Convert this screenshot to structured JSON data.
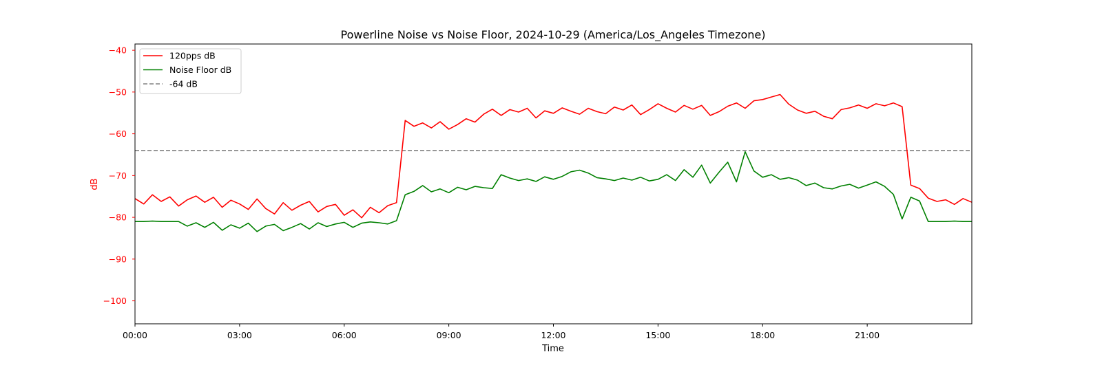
{
  "chart_data": {
    "type": "line",
    "title": "Powerline Noise vs Noise Floor, 2024-10-29 (America/Los_Angeles Timezone)",
    "xlabel": "Time",
    "ylabel": "dB",
    "xlim_hours": [
      0,
      24
    ],
    "ylim": [
      -105.5,
      -38.5
    ],
    "x_ticks": [
      {
        "hour": 0,
        "label": "00:00"
      },
      {
        "hour": 3,
        "label": "03:00"
      },
      {
        "hour": 6,
        "label": "06:00"
      },
      {
        "hour": 9,
        "label": "09:00"
      },
      {
        "hour": 12,
        "label": "12:00"
      },
      {
        "hour": 15,
        "label": "15:00"
      },
      {
        "hour": 18,
        "label": "18:00"
      },
      {
        "hour": 21,
        "label": "21:00"
      }
    ],
    "y_ticks": [
      {
        "value": -40,
        "label": "−40"
      },
      {
        "value": -50,
        "label": "−50"
      },
      {
        "value": -60,
        "label": "−60"
      },
      {
        "value": -70,
        "label": "−70"
      },
      {
        "value": -80,
        "label": "−80"
      },
      {
        "value": -90,
        "label": "−90"
      },
      {
        "value": -100,
        "label": "−100"
      }
    ],
    "grid": false,
    "legend_position": "top-left",
    "x_step_hours": 0.25,
    "series": [
      {
        "name": "120pps dB",
        "color": "#ff0000",
        "style": "solid",
        "values": [
          -75.5,
          -76.8,
          -74.6,
          -76.2,
          -75.1,
          -77.3,
          -75.8,
          -74.9,
          -76.4,
          -75.2,
          -77.6,
          -75.9,
          -76.8,
          -78.1,
          -75.6,
          -77.9,
          -79.2,
          -76.5,
          -78.3,
          -77.1,
          -76.2,
          -78.7,
          -77.4,
          -76.9,
          -79.5,
          -78.2,
          -80.1,
          -77.6,
          -78.9,
          -77.2,
          -76.5,
          -56.8,
          -58.2,
          -57.4,
          -58.6,
          -57.1,
          -58.9,
          -57.8,
          -56.4,
          -57.2,
          -55.3,
          -54.1,
          -55.6,
          -54.2,
          -54.8,
          -53.9,
          -56.2,
          -54.5,
          -55.1,
          -53.8,
          -54.6,
          -55.3,
          -53.9,
          -54.7,
          -55.2,
          -53.6,
          -54.3,
          -53.1,
          -55.4,
          -54.2,
          -52.8,
          -53.9,
          -54.8,
          -53.2,
          -54.1,
          -53.2,
          -55.6,
          -54.7,
          -53.4,
          -52.6,
          -53.9,
          -52.1,
          -51.8,
          -51.2,
          -50.6,
          -52.9,
          -54.3,
          -55.1,
          -54.6,
          -55.8,
          -56.4,
          -54.2,
          -53.8,
          -53.1,
          -53.9,
          -52.8,
          -53.3,
          -52.6,
          -53.5,
          -72.3,
          -73.1,
          -75.4,
          -76.2,
          -75.8,
          -76.9,
          -75.5,
          -76.4
        ]
      },
      {
        "name": "Noise Floor dB",
        "color": "#008000",
        "style": "solid",
        "values": [
          -81,
          -81,
          -80.9,
          -81,
          -81,
          -81,
          -82.1,
          -81.3,
          -82.4,
          -81.2,
          -83.1,
          -81.8,
          -82.6,
          -81.4,
          -83.4,
          -82.1,
          -81.7,
          -83.2,
          -82.4,
          -81.5,
          -82.8,
          -81.3,
          -82.2,
          -81.6,
          -81.2,
          -82.4,
          -81.4,
          -81.1,
          -81.3,
          -81.6,
          -80.8,
          -74.6,
          -73.8,
          -72.4,
          -73.9,
          -73.2,
          -74.1,
          -72.8,
          -73.4,
          -72.6,
          -72.9,
          -73.1,
          -69.8,
          -70.6,
          -71.2,
          -70.8,
          -71.4,
          -70.3,
          -70.9,
          -70.2,
          -69.1,
          -68.7,
          -69.4,
          -70.5,
          -70.8,
          -71.2,
          -70.6,
          -71.1,
          -70.4,
          -71.3,
          -70.9,
          -69.8,
          -71.2,
          -68.6,
          -70.4,
          -67.5,
          -71.8,
          -69.2,
          -66.8,
          -71.5,
          -64.3,
          -68.9,
          -70.4,
          -69.8,
          -70.9,
          -70.5,
          -71.1,
          -72.4,
          -71.8,
          -72.9,
          -73.2,
          -72.5,
          -72.1,
          -73.0,
          -72.3,
          -71.5,
          -72.6,
          -74.5,
          -80.4,
          -75.2,
          -76.1,
          -81.0,
          -81,
          -81,
          -80.9,
          -81,
          -81
        ]
      }
    ],
    "reference_line": {
      "name": "-64 dB",
      "value": -64,
      "color": "#808080",
      "style": "dashed"
    }
  }
}
